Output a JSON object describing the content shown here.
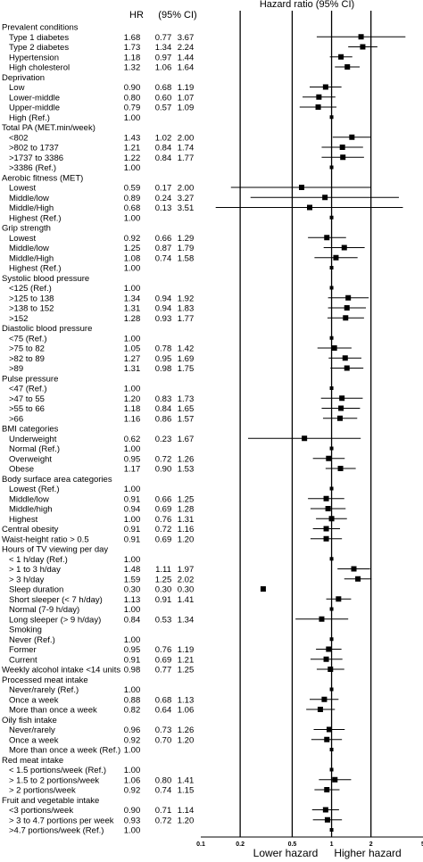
{
  "chart_data": {
    "type": "forest",
    "columns": {
      "hr": "HR",
      "ci": "(95% CI)"
    },
    "plot_title": "Hazard ratio (95% CI)",
    "x_scale": "log",
    "xlim": [
      0.1,
      5
    ],
    "x_ticks": [
      "0.1",
      "0.2",
      "0.5",
      "1",
      "2",
      "5"
    ],
    "x_tick_values": [
      0.1,
      0.2,
      0.5,
      1,
      2,
      5
    ],
    "reference_lines": [
      0.2,
      0.5,
      1,
      2
    ],
    "footer": {
      "left": "Lower hazard",
      "right": "Higher hazard"
    },
    "rows": [
      {
        "label": "Prevalent conditions",
        "header": true
      },
      {
        "label": "Type 1 diabetes",
        "hr": "1.68",
        "lo": "0.77",
        "hi": "3.67"
      },
      {
        "label": "Type 2 diabetes",
        "hr": "1.73",
        "lo": "1.34",
        "hi": "2.24"
      },
      {
        "label": "Hypertension",
        "hr": "1.18",
        "lo": "0.97",
        "hi": "1.44"
      },
      {
        "label": "High cholesterol",
        "hr": "1.32",
        "lo": "1.06",
        "hi": "1.64"
      },
      {
        "label": "Deprivation",
        "header": true
      },
      {
        "label": "Low",
        "hr": "0.90",
        "lo": "0.68",
        "hi": "1.19"
      },
      {
        "label": "Lower-middle",
        "hr": "0.80",
        "lo": "0.60",
        "hi": "1.07"
      },
      {
        "label": "Upper-middle",
        "hr": "0.79",
        "lo": "0.57",
        "hi": "1.09"
      },
      {
        "label": "High (Ref.)",
        "hr": "1.00"
      },
      {
        "label": "Total PA (MET.min/week)",
        "header": true
      },
      {
        "label": "<802",
        "hr": "1.43",
        "lo": "1.02",
        "hi": "2.00"
      },
      {
        "label": ">802 to 1737",
        "hr": "1.21",
        "lo": "0.84",
        "hi": "1.74"
      },
      {
        "label": ">1737 to 3386",
        "hr": "1.22",
        "lo": "0.84",
        "hi": "1.77"
      },
      {
        "label": ">3386 (Ref.)",
        "hr": "1.00"
      },
      {
        "label": "Aerobic fitness (MET)",
        "header": true
      },
      {
        "label": "Lowest",
        "hr": "0.59",
        "lo": "0.17",
        "hi": "2.00"
      },
      {
        "label": "Middle/low",
        "hr": "0.89",
        "lo": "0.24",
        "hi": "3.27"
      },
      {
        "label": "Middle/High",
        "hr": "0.68",
        "lo": "0.13",
        "hi": "3.51"
      },
      {
        "label": "Highest (Ref.)",
        "hr": "1.00"
      },
      {
        "label": "Grip strength",
        "header": true
      },
      {
        "label": "Lowest",
        "hr": "0.92",
        "lo": "0.66",
        "hi": "1.29"
      },
      {
        "label": "Middle/low",
        "hr": "1.25",
        "lo": "0.87",
        "hi": "1.79"
      },
      {
        "label": "Middle/High",
        "hr": "1.08",
        "lo": "0.74",
        "hi": "1.58"
      },
      {
        "label": "Highest (Ref.)",
        "hr": "1.00"
      },
      {
        "label": "Systolic blood pressure",
        "header": true
      },
      {
        "label": "<125 (Ref.)",
        "hr": "1.00"
      },
      {
        "label": ">125 to 138",
        "hr": "1.34",
        "lo": "0.94",
        "hi": "1.92"
      },
      {
        "label": ">138 to 152",
        "hr": "1.31",
        "lo": "0.94",
        "hi": "1.83"
      },
      {
        "label": ">152",
        "hr": "1.28",
        "lo": "0.93",
        "hi": "1.77"
      },
      {
        "label": "Diastolic blood pressure",
        "header": true
      },
      {
        "label": "<75 (Ref.)",
        "hr": "1.00"
      },
      {
        "label": ">75 to 82",
        "hr": "1.05",
        "lo": "0.78",
        "hi": "1.42"
      },
      {
        "label": ">82 to 89",
        "hr": "1.27",
        "lo": "0.95",
        "hi": "1.69"
      },
      {
        "label": ">89",
        "hr": "1.31",
        "lo": "0.98",
        "hi": "1.75"
      },
      {
        "label": "Pulse pressure",
        "header": true
      },
      {
        "label": "<47 (Ref.)",
        "hr": "1.00"
      },
      {
        "label": ">47 to 55",
        "hr": "1.20",
        "lo": "0.83",
        "hi": "1.73"
      },
      {
        "label": ">55 to 66",
        "hr": "1.18",
        "lo": "0.84",
        "hi": "1.65"
      },
      {
        "label": ">66",
        "hr": "1.16",
        "lo": "0.86",
        "hi": "1.57"
      },
      {
        "label": "BMI categories",
        "header": true
      },
      {
        "label": "Underweight",
        "hr": "0.62",
        "lo": "0.23",
        "hi": "1.67"
      },
      {
        "label": "Normal (Ref.)",
        "hr": "1.00"
      },
      {
        "label": "Overweight",
        "hr": "0.95",
        "lo": "0.72",
        "hi": "1.26"
      },
      {
        "label": "Obese",
        "hr": "1.17",
        "lo": "0.90",
        "hi": "1.53"
      },
      {
        "label": "Body surface area categories",
        "header": true
      },
      {
        "label": "Lowest (Ref.)",
        "hr": "1.00"
      },
      {
        "label": "Middle/low",
        "hr": "0.91",
        "lo": "0.66",
        "hi": "1.25"
      },
      {
        "label": "Middle/high",
        "hr": "0.94",
        "lo": "0.69",
        "hi": "1.28"
      },
      {
        "label": "Highest",
        "hr": "1.00",
        "lo": "0.76",
        "hi": "1.31"
      },
      {
        "label": "Central obesity",
        "header": true,
        "hr": "0.91",
        "lo": "0.72",
        "hi": "1.16"
      },
      {
        "label": "Waist-height ratio > 0.5",
        "header": true,
        "hr": "0.91",
        "lo": "0.69",
        "hi": "1.20"
      },
      {
        "label": "Hours of TV viewing per day",
        "header": true
      },
      {
        "label": "< 1 h/day (Ref.)",
        "hr": "1.00"
      },
      {
        "label": "> 1 to 3 h/day",
        "hr": "1.48",
        "lo": "1.11",
        "hi": "1.97"
      },
      {
        "label": "> 3 h/day",
        "hr": "1.59",
        "lo": "1.25",
        "hi": "2.02"
      },
      {
        "label": "Sleep duration",
        "hr": "0.30",
        "lo": "0.30",
        "hi": "0.30"
      },
      {
        "label": "Short sleeper (< 7 h/day)",
        "hr": "1.13",
        "lo": "0.91",
        "hi": "1.41"
      },
      {
        "label": "Normal (7-9 h/day)",
        "hr": "1.00"
      },
      {
        "label": "Long sleeper (> 9 h/day)",
        "hr": "0.84",
        "lo": "0.53",
        "hi": "1.34"
      },
      {
        "label": "Smoking"
      },
      {
        "label": "Never (Ref.)",
        "hr": "1.00"
      },
      {
        "label": "Former",
        "hr": "0.95",
        "lo": "0.76",
        "hi": "1.19"
      },
      {
        "label": "Current",
        "hr": "0.91",
        "lo": "0.69",
        "hi": "1.21"
      },
      {
        "label": "Weekly alcohol intake <14 units",
        "header": true,
        "hr": "0.98",
        "lo": "0.77",
        "hi": "1.25"
      },
      {
        "label": "Processed meat intake",
        "header": true
      },
      {
        "label": "Never/rarely (Ref.)",
        "hr": "1.00"
      },
      {
        "label": "Once a week",
        "hr": "0.88",
        "lo": "0.68",
        "hi": "1.13"
      },
      {
        "label": "More than once a week",
        "hr": "0.82",
        "lo": "0.64",
        "hi": "1.06"
      },
      {
        "label": "Oily fish intake",
        "header": true
      },
      {
        "label": "Never/rarely",
        "hr": "0.96",
        "lo": "0.73",
        "hi": "1.26"
      },
      {
        "label": "Once a week",
        "hr": "0.92",
        "lo": "0.70",
        "hi": "1.20"
      },
      {
        "label": "More than once a week (Ref.)",
        "hr": "1.00"
      },
      {
        "label": "Red meat intake",
        "header": true
      },
      {
        "label": "< 1.5 portions/week (Ref.)",
        "hr": "1.00"
      },
      {
        "label": "> 1.5 to 2 portions/week",
        "hr": "1.06",
        "lo": "0.80",
        "hi": "1.41"
      },
      {
        "label": "> 2 portions/week",
        "hr": "0.92",
        "lo": "0.74",
        "hi": "1.15"
      },
      {
        "label": "Fruit and vegetable intake",
        "header": true
      },
      {
        "label": "<3 portions/week",
        "hr": "0.90",
        "lo": "0.71",
        "hi": "1.14"
      },
      {
        "label": "> 3 to 4.7 portions per week",
        "hr": "0.93",
        "lo": "0.72",
        "hi": "1.20"
      },
      {
        "label": ">4.7 portions/week (Ref.)",
        "hr": "1.00"
      }
    ]
  }
}
